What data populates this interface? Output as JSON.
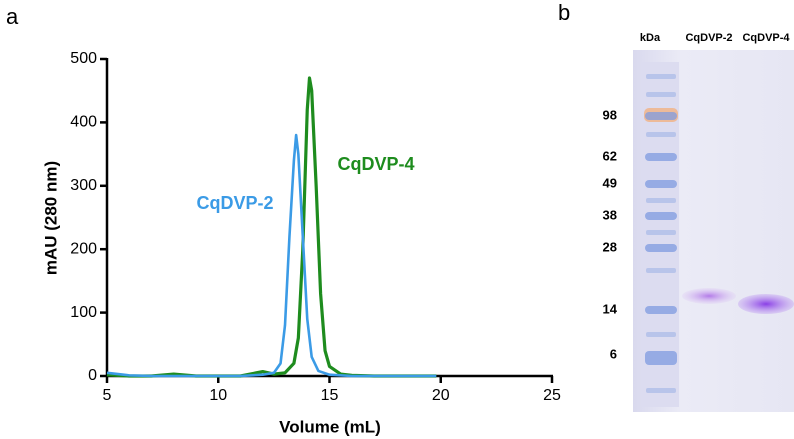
{
  "chart_data": {
    "type": "line",
    "panel_label": "a",
    "xlabel": "Volume (mL)",
    "ylabel": "mAU (280 nm)",
    "xlim": [
      5,
      25
    ],
    "xticks": [
      5,
      10,
      15,
      20,
      25
    ],
    "ylim": [
      0,
      500
    ],
    "yticks": [
      0,
      100,
      200,
      300,
      400,
      500
    ],
    "series": [
      {
        "name": "CqDVP-2",
        "color": "#3b9be6",
        "x": [
          5,
          5.5,
          6,
          7,
          8,
          9,
          10,
          11,
          12,
          12.5,
          12.8,
          13.0,
          13.2,
          13.4,
          13.5,
          13.6,
          13.8,
          14.0,
          14.2,
          14.5,
          15,
          16,
          17,
          18,
          19,
          19.8
        ],
        "values": [
          5,
          3,
          1,
          0,
          0,
          0,
          0,
          0,
          2,
          5,
          20,
          80,
          220,
          340,
          380,
          350,
          220,
          90,
          30,
          8,
          2,
          0,
          0,
          0,
          0,
          0
        ]
      },
      {
        "name": "CqDVP-4",
        "color": "#1e8c1e",
        "x": [
          5,
          5.5,
          6,
          7,
          8,
          9,
          10,
          11,
          12,
          12.5,
          13.0,
          13.4,
          13.6,
          13.8,
          14.0,
          14.1,
          14.2,
          14.4,
          14.6,
          14.8,
          15,
          15.5,
          16,
          17,
          18,
          19,
          19.8
        ],
        "values": [
          2,
          1,
          0,
          0,
          3,
          0,
          0,
          0,
          7,
          3,
          5,
          20,
          60,
          200,
          420,
          470,
          450,
          300,
          130,
          40,
          15,
          3,
          1,
          0,
          0,
          0,
          0
        ]
      }
    ]
  },
  "gel": {
    "panel_label": "b",
    "ladder_label": "kDa",
    "lanes": [
      "CqDVP-2",
      "CqDVP-4"
    ],
    "markers": [
      98,
      62,
      49,
      38,
      28,
      14,
      6
    ]
  }
}
